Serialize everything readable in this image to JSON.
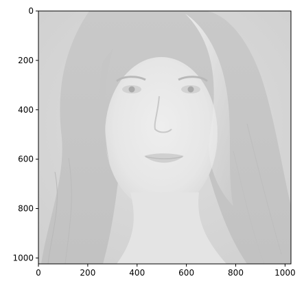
{
  "chart_data": {
    "type": "image",
    "title": "",
    "xlabel": "",
    "ylabel": "",
    "xlim": [
      0,
      1024
    ],
    "ylim": [
      1024,
      0
    ],
    "y_inverted": true,
    "xticks": [
      0,
      200,
      400,
      600,
      800,
      1000
    ],
    "yticks": [
      0,
      200,
      400,
      600,
      800,
      1000
    ],
    "grid": false,
    "legend": "none",
    "colormap": "gray",
    "image_content": "grayscale portrait photograph"
  }
}
